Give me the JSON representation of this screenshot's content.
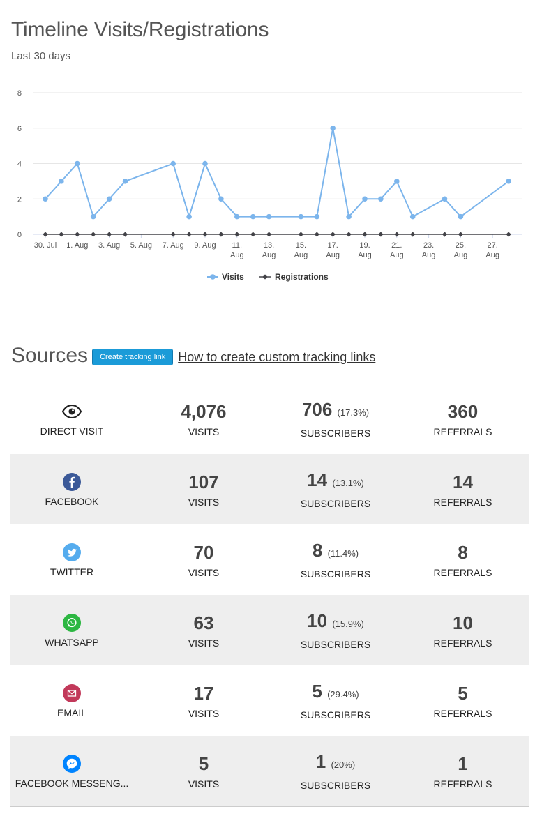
{
  "header": {
    "title": "Timeline Visits/Registrations",
    "subtitle": "Last 30 days"
  },
  "chart_data": {
    "type": "line",
    "x": [
      "30. Jul",
      "31. Jul",
      "1. Aug",
      "2. Aug",
      "3. Aug",
      "4. Aug",
      "5. Aug",
      "6. Aug",
      "7. Aug",
      "8. Aug",
      "9. Aug",
      "10. Aug",
      "11. Aug",
      "12. Aug",
      "13. Aug",
      "14. Aug",
      "15. Aug",
      "16. Aug",
      "17. Aug",
      "18. Aug",
      "19. Aug",
      "20. Aug",
      "21. Aug",
      "22. Aug",
      "23. Aug",
      "24. Aug",
      "25. Aug",
      "26. Aug",
      "27. Aug",
      "28. Aug"
    ],
    "tick_labels": [
      {
        "index": 0,
        "lines": [
          "30. Jul"
        ]
      },
      {
        "index": 2,
        "lines": [
          "1. Aug"
        ]
      },
      {
        "index": 4,
        "lines": [
          "3. Aug"
        ]
      },
      {
        "index": 6,
        "lines": [
          "5. Aug"
        ]
      },
      {
        "index": 8,
        "lines": [
          "7. Aug"
        ]
      },
      {
        "index": 10,
        "lines": [
          "9. Aug"
        ]
      },
      {
        "index": 12,
        "lines": [
          "11.",
          "Aug"
        ]
      },
      {
        "index": 14,
        "lines": [
          "13.",
          "Aug"
        ]
      },
      {
        "index": 16,
        "lines": [
          "15.",
          "Aug"
        ]
      },
      {
        "index": 18,
        "lines": [
          "17.",
          "Aug"
        ]
      },
      {
        "index": 20,
        "lines": [
          "19.",
          "Aug"
        ]
      },
      {
        "index": 22,
        "lines": [
          "21.",
          "Aug"
        ]
      },
      {
        "index": 24,
        "lines": [
          "23.",
          "Aug"
        ]
      },
      {
        "index": 26,
        "lines": [
          "25.",
          "Aug"
        ]
      },
      {
        "index": 28,
        "lines": [
          "27.",
          "Aug"
        ]
      }
    ],
    "series": [
      {
        "name": "Visits",
        "color": "#7cb5ec",
        "points": [
          [
            0,
            2
          ],
          [
            1,
            3
          ],
          [
            2,
            4
          ],
          [
            3,
            1
          ],
          [
            4,
            2
          ],
          [
            5,
            3
          ],
          [
            8,
            4
          ],
          [
            9,
            1
          ],
          [
            10,
            4
          ],
          [
            11,
            2
          ],
          [
            12,
            1
          ],
          [
            13,
            1
          ],
          [
            14,
            1
          ],
          [
            16,
            1
          ],
          [
            17,
            1
          ],
          [
            18,
            6
          ],
          [
            19,
            1
          ],
          [
            20,
            2
          ],
          [
            21,
            2
          ],
          [
            22,
            3
          ],
          [
            23,
            1
          ],
          [
            25,
            2
          ],
          [
            26,
            1
          ],
          [
            29,
            3
          ]
        ]
      },
      {
        "name": "Registrations",
        "color": "#434348",
        "points": [
          [
            0,
            0
          ],
          [
            1,
            0
          ],
          [
            2,
            0
          ],
          [
            3,
            0
          ],
          [
            4,
            0
          ],
          [
            5,
            0
          ],
          [
            8,
            0
          ],
          [
            9,
            0
          ],
          [
            10,
            0
          ],
          [
            11,
            0
          ],
          [
            12,
            0
          ],
          [
            13,
            0
          ],
          [
            14,
            0
          ],
          [
            16,
            0
          ],
          [
            17,
            0
          ],
          [
            18,
            0
          ],
          [
            19,
            0
          ],
          [
            20,
            0
          ],
          [
            21,
            0
          ],
          [
            22,
            0
          ],
          [
            23,
            0
          ],
          [
            25,
            0
          ],
          [
            26,
            0
          ],
          [
            29,
            0
          ]
        ]
      }
    ],
    "yticks": [
      0,
      2,
      4,
      6,
      8
    ],
    "ylim": [
      0,
      8
    ],
    "grid": true,
    "legend": "bottom-center"
  },
  "sources": {
    "title": "Sources",
    "create_button": "Create tracking link",
    "how_to_link": "How to create custom tracking links",
    "caption_visits": "VISITS",
    "caption_subscribers": "SUBSCRIBERS",
    "caption_referrals": "REFERRALS",
    "rows": [
      {
        "icon": "eye-icon",
        "name": "DIRECT VISIT",
        "visits": "4,076",
        "subscribers": "706",
        "pct": "(17.3%)",
        "referrals": "360"
      },
      {
        "icon": "facebook-icon",
        "icon_color": "#3b5998",
        "name": "FACEBOOK",
        "visits": "107",
        "subscribers": "14",
        "pct": "(13.1%)",
        "referrals": "14"
      },
      {
        "icon": "twitter-icon",
        "icon_color": "#55acee",
        "name": "TWITTER",
        "visits": "70",
        "subscribers": "8",
        "pct": "(11.4%)",
        "referrals": "8"
      },
      {
        "icon": "whatsapp-icon",
        "icon_color": "#2db742",
        "name": "WHATSAPP",
        "visits": "63",
        "subscribers": "10",
        "pct": "(15.9%)",
        "referrals": "10"
      },
      {
        "icon": "email-icon",
        "icon_color": "#c2395a",
        "name": "EMAIL",
        "visits": "17",
        "subscribers": "5",
        "pct": "(29.4%)",
        "referrals": "5"
      },
      {
        "icon": "messenger-icon",
        "icon_color": "#0084ff",
        "name": "FACEBOOK MESSENG...",
        "visits": "5",
        "subscribers": "1",
        "pct": "(20%)",
        "referrals": "1"
      }
    ]
  }
}
